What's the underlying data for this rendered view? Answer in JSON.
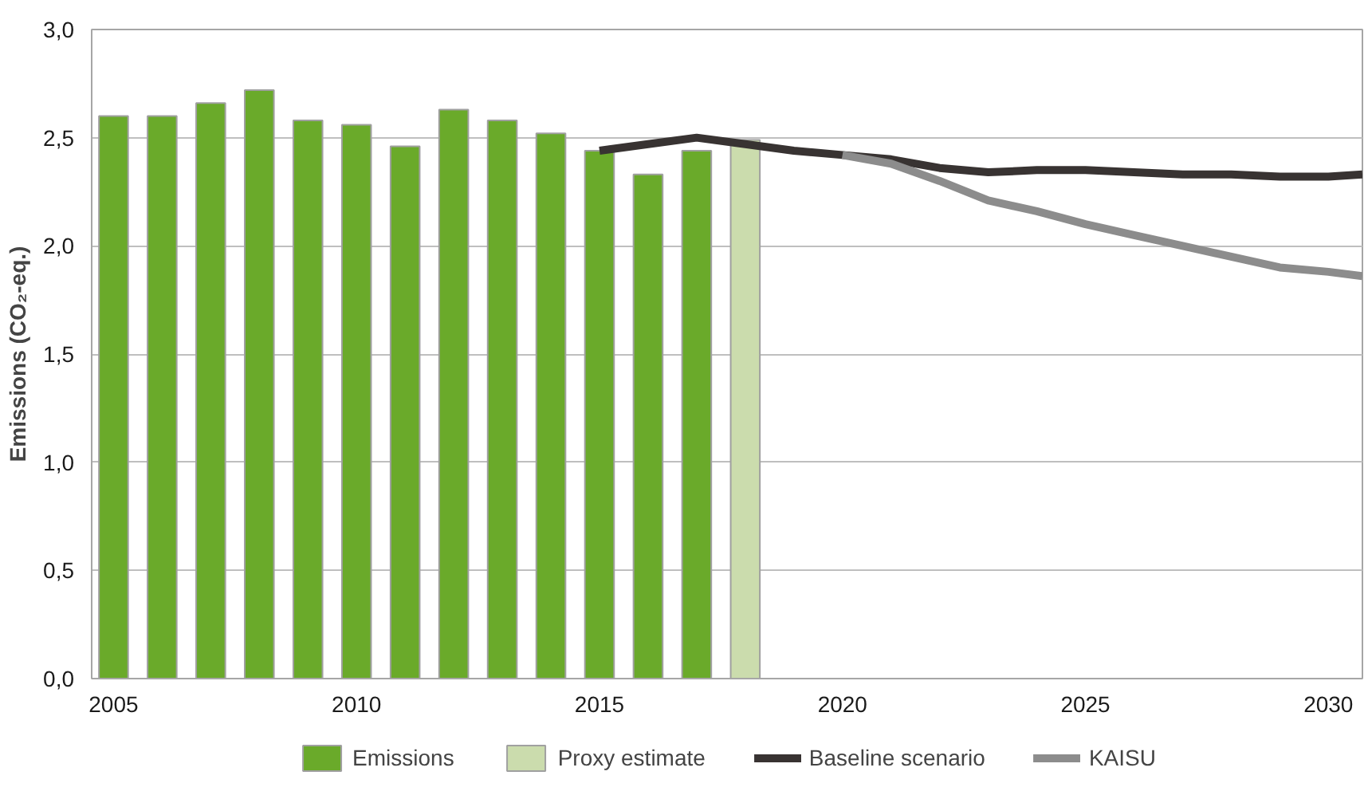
{
  "chart_data": {
    "type": "bar",
    "ylabel": "Emissions (CO₂-eq.)",
    "xlim": [
      2004.55,
      2030.7
    ],
    "xticks": [
      2005,
      2010,
      2015,
      2020,
      2025,
      2030
    ],
    "ylim": [
      0,
      3
    ],
    "yticks": [
      {
        "value": 0,
        "label": "0,0"
      },
      {
        "value": 0.5,
        "label": "0,5"
      },
      {
        "value": 1,
        "label": "1,0"
      },
      {
        "value": 1.5,
        "label": "1,5"
      },
      {
        "value": 2,
        "label": "2,0"
      },
      {
        "value": 2.5,
        "label": "2,5"
      },
      {
        "value": 3,
        "label": "3,0"
      }
    ],
    "grid": "y",
    "legend": "bottom",
    "series": [
      {
        "name": "Emissions",
        "color": "#6aaa2a",
        "x": [
          2005,
          2006,
          2007,
          2008,
          2009,
          2010,
          2011,
          2012,
          2013,
          2014,
          2015,
          2016,
          2017
        ],
        "values": [
          2.6,
          2.6,
          2.66,
          2.72,
          2.58,
          2.56,
          2.46,
          2.63,
          2.58,
          2.52,
          2.44,
          2.33,
          2.44
        ]
      },
      {
        "name": "Proxy estimate",
        "color": "#cbdcad",
        "x": [
          2018
        ],
        "values": [
          2.49
        ]
      },
      {
        "name": "Baseline scenario",
        "type": "line",
        "color": "#383332",
        "x": [
          2015,
          2016,
          2017,
          2018,
          2019,
          2020,
          2021,
          2022,
          2023,
          2024,
          2025,
          2026,
          2027,
          2028,
          2029,
          2030,
          2030.7
        ],
        "values": [
          2.44,
          2.47,
          2.5,
          2.47,
          2.44,
          2.42,
          2.4,
          2.36,
          2.34,
          2.35,
          2.35,
          2.34,
          2.33,
          2.33,
          2.32,
          2.32,
          2.33
        ]
      },
      {
        "name": "KAISU",
        "type": "line",
        "color": "#8c8c8c",
        "x": [
          2020,
          2021,
          2022,
          2023,
          2024,
          2025,
          2026,
          2027,
          2028,
          2029,
          2030,
          2030.7
        ],
        "values": [
          2.42,
          2.38,
          2.3,
          2.21,
          2.16,
          2.1,
          2.05,
          2.0,
          1.95,
          1.9,
          1.88,
          1.86
        ]
      }
    ]
  }
}
